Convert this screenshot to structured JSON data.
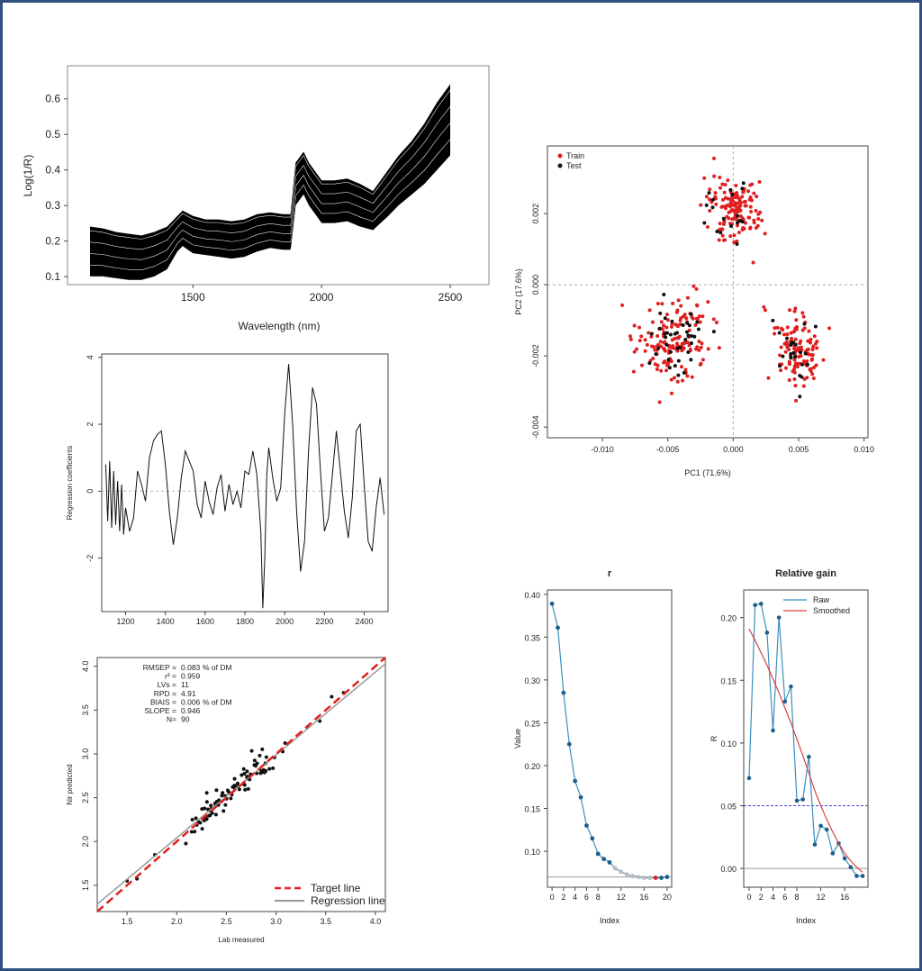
{
  "colors": {
    "border": "#2f4f7f",
    "train": "#e02020",
    "test": "#111111",
    "raw": "#3a8fc0",
    "smoothed": "#d94040",
    "target": "#e02020",
    "regression": "#999999",
    "ref_dash": "#4040d0"
  },
  "chart_data": [
    {
      "id": "spectra",
      "type": "line",
      "ylabel": "Log(1/R)",
      "xlabel": "Wavelength (nm)",
      "xlim": [
        1100,
        2500
      ],
      "ylim": [
        0.08,
        0.65
      ],
      "xticks": [
        "1500",
        "2000",
        "2500"
      ],
      "yticks": [
        "0.1",
        "0.2",
        "0.3",
        "0.4",
        "0.5",
        "0.6"
      ],
      "x": [
        1100,
        1150,
        1200,
        1250,
        1300,
        1350,
        1400,
        1440,
        1460,
        1500,
        1550,
        1600,
        1650,
        1700,
        1750,
        1800,
        1850,
        1880,
        1900,
        1930,
        1950,
        2000,
        2050,
        2100,
        2150,
        2200,
        2230,
        2260,
        2300,
        2350,
        2400,
        2450,
        2500
      ],
      "lower": [
        0.1,
        0.1,
        0.095,
        0.09,
        0.09,
        0.1,
        0.12,
        0.17,
        0.185,
        0.165,
        0.16,
        0.155,
        0.15,
        0.155,
        0.17,
        0.18,
        0.175,
        0.175,
        0.3,
        0.33,
        0.3,
        0.25,
        0.25,
        0.255,
        0.24,
        0.23,
        0.25,
        0.27,
        0.3,
        0.33,
        0.36,
        0.4,
        0.44
      ],
      "upper": [
        0.24,
        0.235,
        0.225,
        0.22,
        0.215,
        0.225,
        0.24,
        0.27,
        0.285,
        0.27,
        0.26,
        0.26,
        0.255,
        0.26,
        0.275,
        0.28,
        0.275,
        0.275,
        0.42,
        0.45,
        0.42,
        0.37,
        0.37,
        0.375,
        0.36,
        0.34,
        0.37,
        0.4,
        0.44,
        0.48,
        0.53,
        0.59,
        0.64
      ],
      "n_lines": 14
    },
    {
      "id": "regression_coefficients",
      "type": "line",
      "ylabel": "Regression coefficients",
      "xlabel": "",
      "xlim": [
        1080,
        2520
      ],
      "ylim": [
        -3.6,
        4.1
      ],
      "xticks": [
        "1200",
        "1400",
        "1600",
        "1800",
        "2000",
        "2200",
        "2400"
      ],
      "yticks": [
        "-2",
        "0",
        "2",
        "4"
      ],
      "x": [
        1100,
        1110,
        1120,
        1130,
        1140,
        1150,
        1160,
        1170,
        1180,
        1190,
        1200,
        1220,
        1240,
        1260,
        1280,
        1300,
        1320,
        1340,
        1360,
        1380,
        1400,
        1420,
        1440,
        1460,
        1480,
        1500,
        1520,
        1540,
        1560,
        1580,
        1600,
        1620,
        1640,
        1660,
        1680,
        1700,
        1720,
        1740,
        1760,
        1780,
        1800,
        1820,
        1840,
        1860,
        1880,
        1890,
        1900,
        1910,
        1920,
        1940,
        1960,
        1980,
        2000,
        2020,
        2040,
        2060,
        2080,
        2100,
        2120,
        2140,
        2160,
        2180,
        2200,
        2220,
        2240,
        2260,
        2280,
        2300,
        2320,
        2340,
        2360,
        2380,
        2400,
        2420,
        2440,
        2460,
        2480,
        2500
      ],
      "y": [
        0.8,
        -0.9,
        0.9,
        -1.1,
        0.6,
        -1.0,
        0.3,
        -1.2,
        0.2,
        -1.3,
        -0.5,
        -1.2,
        -0.8,
        0.6,
        0.2,
        -0.3,
        1.0,
        1.5,
        1.7,
        1.8,
        0.8,
        -0.6,
        -1.6,
        -0.8,
        0.4,
        1.2,
        0.9,
        0.6,
        -0.4,
        -0.8,
        0.3,
        -0.3,
        -0.7,
        0.1,
        0.5,
        -0.6,
        0.2,
        -0.4,
        0.0,
        -0.5,
        0.6,
        0.5,
        1.2,
        0.5,
        -1.2,
        -3.5,
        -2.0,
        0.5,
        1.3,
        0.4,
        -0.3,
        0.1,
        2.3,
        3.8,
        2.0,
        -0.6,
        -2.4,
        -1.5,
        1.2,
        3.1,
        2.6,
        0.6,
        -1.2,
        -0.8,
        0.5,
        1.8,
        0.6,
        -0.6,
        -1.4,
        -0.2,
        1.8,
        2.0,
        0.2,
        -1.5,
        -1.8,
        -0.5,
        0.4,
        -0.7
      ]
    },
    {
      "id": "pca",
      "type": "scatter",
      "xlabel": "PC1 (71.6%)",
      "ylabel": "PC2 (17.6%)",
      "xlim": [
        -0.0142,
        0.0103
      ],
      "ylim": [
        -0.0043,
        0.0039
      ],
      "xticks": [
        "-0.010",
        "-0.005",
        "0.000",
        "0.005",
        "0.010"
      ],
      "yticks": [
        "-0.004",
        "-0.002",
        "0.000",
        "0.002"
      ],
      "legend": [
        "Train",
        "Test"
      ],
      "legend_position": "top-left",
      "clusters": [
        {
          "cx": 0.0,
          "cy": 0.0021,
          "sx": 0.0018,
          "sy": 0.0007,
          "train": 140,
          "test": 18
        },
        {
          "cx": -0.0045,
          "cy": -0.0016,
          "sx": 0.0025,
          "sy": 0.0009,
          "train": 150,
          "test": 40
        },
        {
          "cx": 0.0048,
          "cy": -0.0018,
          "sx": 0.0017,
          "sy": 0.0008,
          "train": 120,
          "test": 22
        }
      ]
    },
    {
      "id": "predicted_vs_measured",
      "type": "scatter",
      "xlabel": "Lab measured",
      "ylabel": "Nir predicted",
      "xlim": [
        1.2,
        4.1
      ],
      "ylim": [
        1.2,
        4.1
      ],
      "xticks": [
        "1.5",
        "2.0",
        "2.5",
        "3.0",
        "3.5",
        "4.0"
      ],
      "yticks": [
        "1.5",
        "2.0",
        "2.5",
        "3.0",
        "3.5",
        "4.0"
      ],
      "stats": [
        {
          "k": "RMSEP =",
          "v": "0.083",
          "u": "% of DM"
        },
        {
          "k": "r² =",
          "v": "0.959",
          "u": ""
        },
        {
          "k": "LVs =",
          "v": "11",
          "u": ""
        },
        {
          "k": "RPD =",
          "v": "4.91",
          "u": ""
        },
        {
          "k": "BIAIS =",
          "v": "0.006",
          "u": "% of DM"
        },
        {
          "k": "SLOPE =",
          "v": "0.946",
          "u": ""
        },
        {
          "k": "N=",
          "v": "90",
          "u": ""
        }
      ],
      "legend": [
        "Target line",
        "Regression line"
      ],
      "legend_position": "bottom-right",
      "n_points": 90,
      "slope": 0.946,
      "intercept": 0.15
    },
    {
      "id": "r",
      "type": "line",
      "title": "r",
      "xlabel": "Index",
      "ylabel": "Value",
      "xlim": [
        -0.8,
        20.8
      ],
      "ylim": [
        0.058,
        0.405
      ],
      "xticks": [
        "0",
        "2",
        "4",
        "6",
        "8",
        "12",
        "16",
        "20"
      ],
      "xtick_values": [
        0,
        2,
        4,
        6,
        8,
        12,
        16,
        20
      ],
      "yticks": [
        "0.10",
        "0.15",
        "0.20",
        "0.25",
        "0.30",
        "0.35",
        "0.40"
      ],
      "x": [
        0,
        1,
        2,
        3,
        4,
        5,
        6,
        7,
        8,
        9,
        10,
        11,
        12,
        13,
        14,
        15,
        16,
        17,
        18,
        19,
        20
      ],
      "y": [
        0.389,
        0.361,
        0.285,
        0.225,
        0.182,
        0.163,
        0.13,
        0.115,
        0.097,
        0.091,
        0.087,
        0.08,
        0.076,
        0.073,
        0.071,
        0.07,
        0.069,
        0.069,
        0.069,
        0.069,
        0.07
      ],
      "reference": 0.07,
      "highlight_index": 18
    },
    {
      "id": "relative_gain",
      "type": "line",
      "title": "Relative gain",
      "xlabel": "Index",
      "ylabel": "R",
      "xlim": [
        -0.9,
        19.9
      ],
      "ylim": [
        -0.015,
        0.222
      ],
      "xticks": [
        "0",
        "2",
        "4",
        "6",
        "8",
        "12",
        "16"
      ],
      "xtick_values": [
        0,
        2,
        4,
        6,
        8,
        12,
        16
      ],
      "yticks": [
        "0.00",
        "0.05",
        "0.10",
        "0.15",
        "0.20"
      ],
      "legend": [
        "Raw",
        "Smoothed"
      ],
      "legend_position": "top-right",
      "x": [
        0,
        1,
        2,
        3,
        4,
        5,
        6,
        7,
        8,
        9,
        10,
        11,
        12,
        13,
        14,
        15,
        16,
        17,
        18,
        19
      ],
      "raw": [
        0.072,
        0.21,
        0.211,
        0.188,
        0.11,
        0.2,
        0.133,
        0.145,
        0.054,
        0.055,
        0.089,
        0.019,
        0.034,
        0.031,
        0.012,
        0.02,
        0.008,
        0.001,
        -0.006,
        -0.006
      ],
      "smoothed": [
        0.191,
        0.182,
        0.172,
        0.162,
        0.151,
        0.14,
        0.128,
        0.116,
        0.103,
        0.09,
        0.076,
        0.062,
        0.05,
        0.039,
        0.029,
        0.02,
        0.012,
        0.006,
        0.001,
        -0.003
      ],
      "threshold": 0.05,
      "zero": 0.0
    }
  ]
}
